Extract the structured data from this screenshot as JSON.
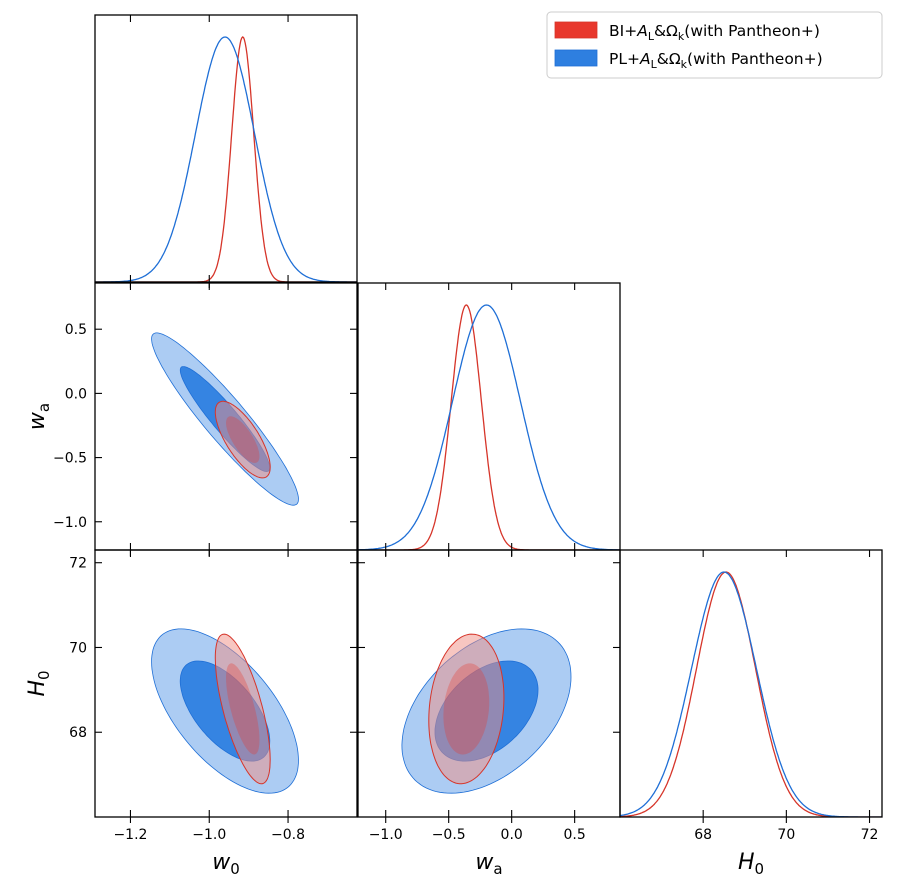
{
  "chart_data": {
    "type": "triangle-plot",
    "parameters": [
      {
        "key": "w0",
        "symbol": "w",
        "sub": "0",
        "range": [
          -1.29,
          -0.625
        ],
        "ticks": [
          -1.2,
          -1.0,
          -0.8
        ],
        "tick_labels": [
          "−1.2",
          "−1.0",
          "−0.8"
        ]
      },
      {
        "key": "wa",
        "symbol": "w",
        "sub": "a",
        "range": [
          -1.22,
          0.86
        ],
        "ticks": [
          -1.0,
          -0.5,
          0.0,
          0.5
        ],
        "tick_labels": [
          "−1.0",
          "−0.5",
          "0.0",
          "0.5"
        ]
      },
      {
        "key": "H0",
        "symbol": "H",
        "sub": "0",
        "range": [
          66.0,
          72.3
        ],
        "ticks": [
          68,
          70,
          72
        ],
        "tick_labels": [
          "68",
          "70",
          "72"
        ]
      }
    ],
    "legend": {
      "position": "top-right",
      "entries": [
        {
          "prefix": "BI+",
          "A_sub": "L",
          "middle": "&Ω",
          "Omega_sub": "k",
          "suffix": "(with Pantheon+)"
        },
        {
          "prefix": "PL+",
          "A_sub": "L",
          "middle": "&Ω",
          "Omega_sub": "k",
          "suffix": "(with Pantheon+)"
        }
      ]
    },
    "series": [
      {
        "name": "BI+A_L&Omega_k (with Pantheon+)",
        "fill_1sigma": "#e8372c",
        "fill_2sigma": "#f08e84",
        "line": "#d6352a",
        "filled": false,
        "mean": {
          "w0": -0.915,
          "wa": -0.36,
          "H0": 68.55
        },
        "sigma": {
          "w0": 0.028,
          "wa": 0.12,
          "H0": 0.71
        },
        "correlations": {
          "w0_wa": -0.72,
          "w0_H0": -0.68,
          "wa_H0": 0.15
        }
      },
      {
        "name": "PL+A_L&Omega_k (with Pantheon+)",
        "fill_1sigma": "#2e7fe0",
        "fill_2sigma": "#a8c9f2",
        "line": "#1f6fd6",
        "filled": true,
        "mean": {
          "w0": -0.96,
          "wa": -0.2,
          "H0": 68.5
        },
        "sigma": {
          "w0": 0.075,
          "wa": 0.27,
          "H0": 0.78
        },
        "correlations": {
          "w0_wa": -0.93,
          "w0_H0": -0.6,
          "wa_H0": 0.42
        }
      }
    ]
  }
}
